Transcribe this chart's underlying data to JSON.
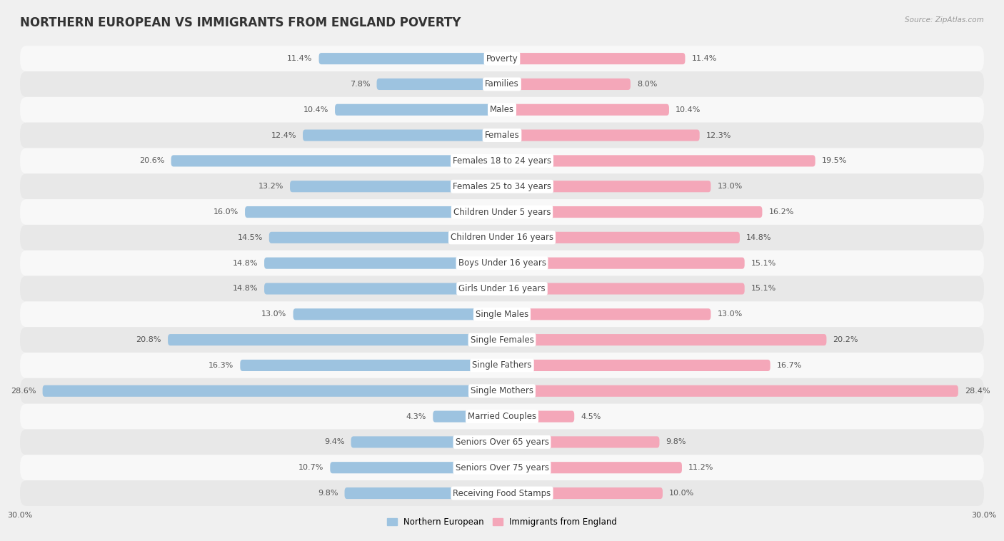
{
  "title": "NORTHERN EUROPEAN VS IMMIGRANTS FROM ENGLAND POVERTY",
  "source": "Source: ZipAtlas.com",
  "categories": [
    "Poverty",
    "Families",
    "Males",
    "Females",
    "Females 18 to 24 years",
    "Females 25 to 34 years",
    "Children Under 5 years",
    "Children Under 16 years",
    "Boys Under 16 years",
    "Girls Under 16 years",
    "Single Males",
    "Single Females",
    "Single Fathers",
    "Single Mothers",
    "Married Couples",
    "Seniors Over 65 years",
    "Seniors Over 75 years",
    "Receiving Food Stamps"
  ],
  "northern_european": [
    11.4,
    7.8,
    10.4,
    12.4,
    20.6,
    13.2,
    16.0,
    14.5,
    14.8,
    14.8,
    13.0,
    20.8,
    16.3,
    28.6,
    4.3,
    9.4,
    10.7,
    9.8
  ],
  "immigrants_england": [
    11.4,
    8.0,
    10.4,
    12.3,
    19.5,
    13.0,
    16.2,
    14.8,
    15.1,
    15.1,
    13.0,
    20.2,
    16.7,
    28.4,
    4.5,
    9.8,
    11.2,
    10.0
  ],
  "color_blue": "#9dc3e0",
  "color_pink": "#f4a7b9",
  "bg_color": "#f0f0f0",
  "row_bg_odd": "#e8e8e8",
  "row_bg_even": "#f8f8f8",
  "max_val": 30.0,
  "legend_blue": "Northern European",
  "legend_pink": "Immigrants from England",
  "title_fontsize": 12,
  "label_fontsize": 8.5,
  "value_fontsize": 8,
  "cat_fontsize": 8.5
}
